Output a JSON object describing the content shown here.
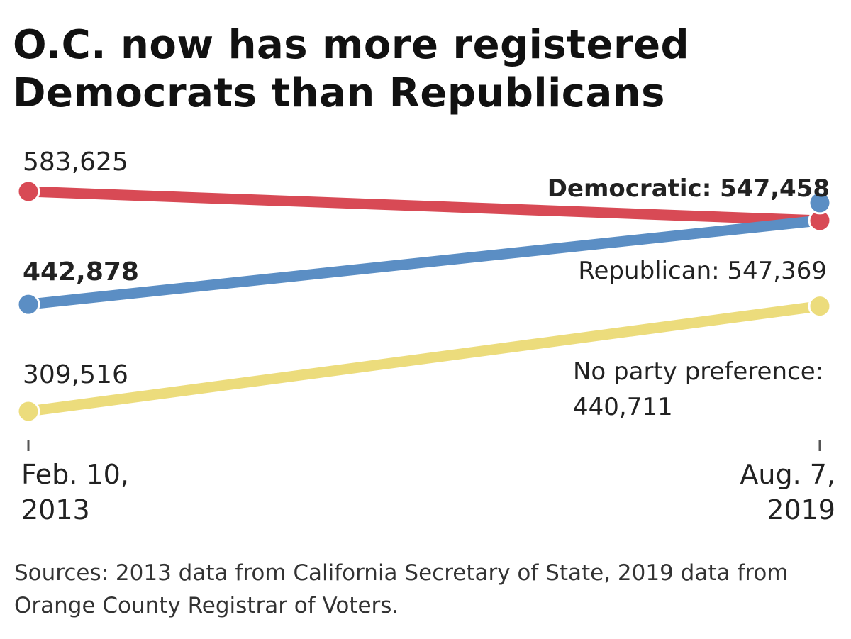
{
  "title_lines": [
    "O.C. now has more registered",
    "Democrats than Republicans"
  ],
  "source_note": "Sources: 2013 data from California Secretary of State, 2019 data from Orange County Registrar of Voters.",
  "chart_data": {
    "type": "line",
    "x": [
      "Feb. 10, 2013",
      "Aug. 7, 2019"
    ],
    "x_tick_lines": [
      [
        "Feb. 10,",
        "2013"
      ],
      [
        "Aug. 7,",
        "2019"
      ]
    ],
    "ylim": [
      300000,
      600000
    ],
    "grid": false,
    "legend": "none",
    "series": [
      {
        "key": "rep",
        "name": "Republican",
        "color": "#d84a55",
        "values": [
          583625,
          547369
        ],
        "start_label": "583,625",
        "start_bold": false,
        "end_label_prefix": "Republican: ",
        "end_label_value": "547,369",
        "end_bold": false
      },
      {
        "key": "dem",
        "name": "Democratic",
        "color": "#5b8ec4",
        "values": [
          442878,
          547458
        ],
        "start_label": "442,878",
        "start_bold": true,
        "end_label_prefix": "Democratic: ",
        "end_label_value": "547,458",
        "end_bold": true
      },
      {
        "key": "npp",
        "name": "No party preference",
        "color": "#ecdc7c",
        "values": [
          309516,
          440711
        ],
        "start_label": "309,516",
        "start_bold": false,
        "end_label_lines": [
          "No party preference:",
          "440,711"
        ],
        "end_bold": false
      }
    ]
  }
}
